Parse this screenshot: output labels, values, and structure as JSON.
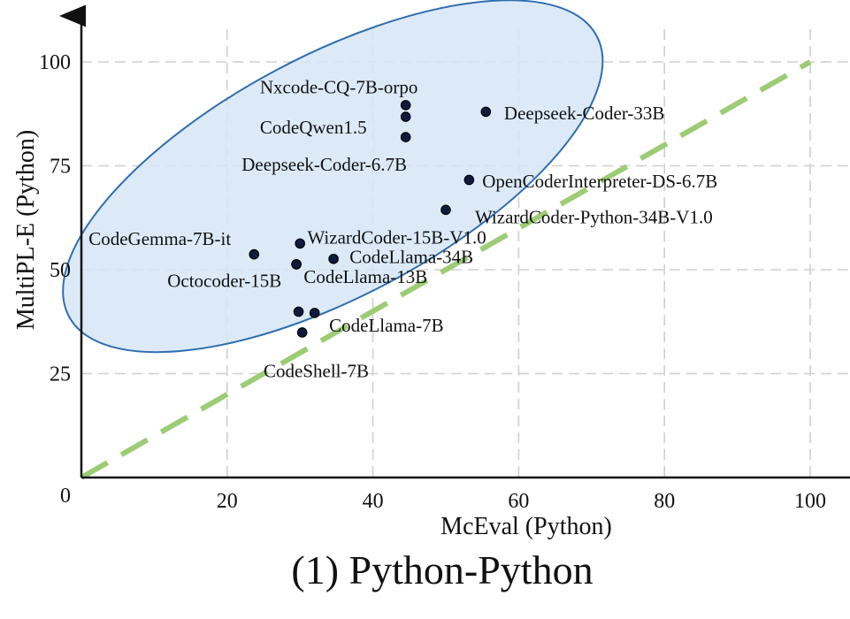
{
  "chart_data": {
    "type": "scatter",
    "title": "(1) Python-Python",
    "xlabel": "McEval (Python)",
    "ylabel": "MultiPL-E (Python)",
    "xlim": [
      0,
      105
    ],
    "ylim": [
      0,
      110
    ],
    "xticks": [
      20,
      40,
      60,
      80,
      100
    ],
    "yticks": [
      25,
      50,
      75,
      100
    ],
    "origin_label": "0",
    "grid": true,
    "reference_line": {
      "style": "dashed",
      "from": [
        0,
        0
      ],
      "to": [
        100,
        100
      ],
      "color": "#9ccc74"
    },
    "highlight_ellipse": {
      "center": [
        34.5,
        72.5
      ],
      "semi_axes": [
        41,
        16.5
      ],
      "angle_deg": 28,
      "fill": "#d6e6f7",
      "stroke": "#2f6eb0"
    },
    "point_color": "#0d1b3e",
    "points": [
      {
        "name": "Nxcode-CQ-7B-orpo",
        "x": 44.5,
        "y": 89.6
      },
      {
        "name": "CodeQwen1.5",
        "x": 44.5,
        "y": 86.8
      },
      {
        "name": "Deepseek-Coder-6.7B",
        "x": 44.5,
        "y": 81.9
      },
      {
        "name": "Deepseek-Coder-33B",
        "x": 55.5,
        "y": 88.0
      },
      {
        "name": "OpenCoderInterpreter-DS-6.7B",
        "x": 53.2,
        "y": 71.6
      },
      {
        "name": "WizardCoder-Python-34B-V1.0",
        "x": 50.0,
        "y": 64.4
      },
      {
        "name": "WizardCoder-15B-V1.0",
        "x": 30.0,
        "y": 56.3
      },
      {
        "name": "CodeGemma-7B-it",
        "x": 23.7,
        "y": 53.7
      },
      {
        "name": "CodeLlama-34B",
        "x": 34.6,
        "y": 52.6
      },
      {
        "name": "Octocoder-15B",
        "x": 29.5,
        "y": 51.3
      },
      {
        "name": "CodeLlama-13B",
        "x": 29.5,
        "y": 51.3
      },
      {
        "name": "CodeLlama-7B",
        "x": 32.0,
        "y": 39.6
      },
      {
        "name": "CodeShell-7B",
        "x": 29.8,
        "y": 39.9
      },
      {
        "name": "CodeShell-7B",
        "x": 30.3,
        "y": 34.9
      }
    ],
    "labels": [
      {
        "text": "Nxcode-CQ-7B-orpo",
        "x": 24.5,
        "y": 92.5,
        "anchor": "start"
      },
      {
        "text": "CodeQwen1.5",
        "x": 24.5,
        "y": 82.8,
        "anchor": "start"
      },
      {
        "text": "Deepseek-Coder-6.7B",
        "x": 22.0,
        "y": 73.8,
        "anchor": "start"
      },
      {
        "text": "Deepseek-Coder-33B",
        "x": 58.0,
        "y": 86.2,
        "anchor": "start"
      },
      {
        "text": "OpenCoderInterpreter-DS-6.7B",
        "x": 55.0,
        "y": 69.8,
        "anchor": "start"
      },
      {
        "text": "WizardCoder-Python-34B-V1.0",
        "x": 54.0,
        "y": 61.2,
        "anchor": "start"
      },
      {
        "text": "WizardCoder-15B-V1.0",
        "x": 31.0,
        "y": 56.3,
        "anchor": "start"
      },
      {
        "text": "CodeGemma-7B-it",
        "x": 1.0,
        "y": 56.0,
        "anchor": "start"
      },
      {
        "text": "CodeLlama-34B",
        "x": 36.8,
        "y": 51.6,
        "anchor": "start"
      },
      {
        "text": "Octocoder-15B",
        "x": 11.8,
        "y": 45.9,
        "anchor": "start"
      },
      {
        "text": "CodeLlama-13B",
        "x": 30.5,
        "y": 46.8,
        "anchor": "start"
      },
      {
        "text": "CodeLlama-7B",
        "x": 34.0,
        "y": 35.1,
        "anchor": "start"
      },
      {
        "text": "CodeShell-7B",
        "x": 25.0,
        "y": 24.2,
        "anchor": "start"
      }
    ]
  }
}
